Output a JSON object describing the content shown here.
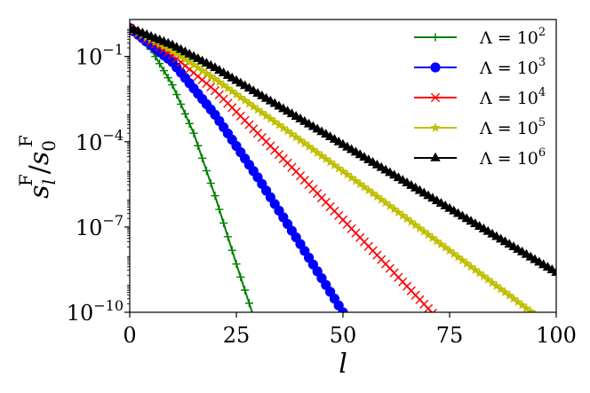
{
  "chart_data": {
    "type": "line",
    "title": "",
    "xlabel": "l",
    "ylabel": "s_l^F / s_0^F",
    "ylabel_parts": {
      "numerator": "s",
      "num_sub": "l",
      "num_sup": "F",
      "slash": "/",
      "denominator": "s",
      "den_sub": "0",
      "den_sup": "F"
    },
    "xlim": [
      0,
      100
    ],
    "ylim_log10": [
      -10,
      0.3
    ],
    "yscale": "log",
    "grid": false,
    "legend_position": "top-right",
    "x_ticks": [
      0,
      25,
      50,
      75,
      100
    ],
    "x_tick_labels": [
      "0",
      "25",
      "50",
      "75",
      "100"
    ],
    "y_ticks_log10": [
      -1,
      -4,
      -7,
      -10
    ],
    "y_tick_labels": [
      {
        "base": "10",
        "exp": "−1"
      },
      {
        "base": "10",
        "exp": "−4"
      },
      {
        "base": "10",
        "exp": "−7"
      },
      {
        "base": "10",
        "exp": "−10"
      }
    ],
    "series": [
      {
        "name": "Λ = 10",
        "name_exp": "2",
        "color": "#008000",
        "marker": "plus",
        "x_step": 1,
        "x_end": 30,
        "log10_points": [
          [
            0,
            0
          ],
          [
            5,
            -0.75
          ],
          [
            10,
            -2.0
          ],
          [
            15,
            -3.7
          ],
          [
            20,
            -5.9
          ],
          [
            25,
            -8.3
          ],
          [
            30,
            -10.6
          ]
        ]
      },
      {
        "name": "Λ = 10",
        "name_exp": "3",
        "color": "#0000ff",
        "marker": "circle",
        "x_step": 1,
        "x_end": 52,
        "log10_points": [
          [
            0,
            0
          ],
          [
            10,
            -1.2
          ],
          [
            20,
            -3.05
          ],
          [
            30,
            -5.25
          ],
          [
            40,
            -7.6
          ],
          [
            50,
            -10.0
          ],
          [
            52,
            -10.5
          ]
        ]
      },
      {
        "name": "Λ = 10",
        "name_exp": "4",
        "color": "#ff0000",
        "marker": "x",
        "x_step": 1,
        "x_end": 74,
        "log10_points": [
          [
            0,
            0
          ],
          [
            10,
            -0.95
          ],
          [
            20,
            -2.2
          ],
          [
            40,
            -5.2
          ],
          [
            60,
            -8.3
          ],
          [
            74,
            -10.5
          ]
        ]
      },
      {
        "name": "Λ = 10",
        "name_exp": "5",
        "color": "#bfbf00",
        "marker": "star",
        "x_step": 1,
        "x_end": 96,
        "log10_points": [
          [
            0,
            0
          ],
          [
            10,
            -0.8
          ],
          [
            20,
            -1.8
          ],
          [
            40,
            -3.95
          ],
          [
            60,
            -6.15
          ],
          [
            80,
            -8.4
          ],
          [
            96,
            -10.2
          ]
        ]
      },
      {
        "name": "Λ = 10",
        "name_exp": "6",
        "color": "#000000",
        "marker": "triangle",
        "x_step": 1,
        "x_end": 100,
        "log10_points": [
          [
            0,
            0
          ],
          [
            10,
            -0.6
          ],
          [
            20,
            -1.4
          ],
          [
            40,
            -3.2
          ],
          [
            60,
            -5.0
          ],
          [
            80,
            -6.8
          ],
          [
            100,
            -8.6
          ]
        ]
      }
    ]
  }
}
